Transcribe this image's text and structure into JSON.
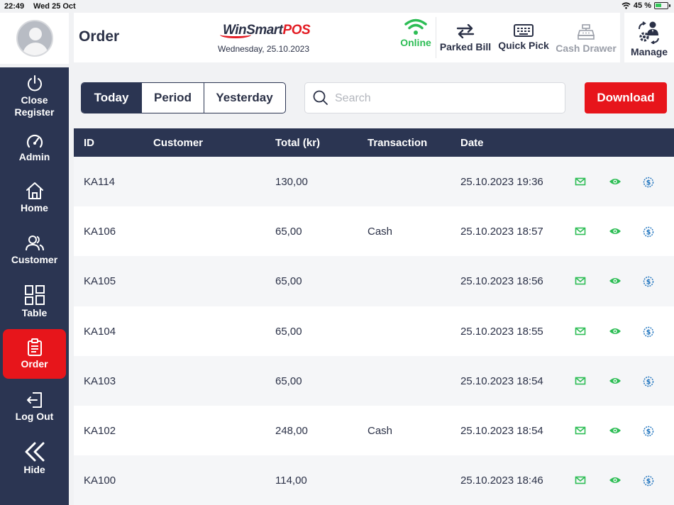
{
  "status_bar": {
    "time": "22:49",
    "date": "Wed 25 Oct",
    "battery": "45 %",
    "battery_level": 0.45
  },
  "header": {
    "title": "Order",
    "logo": {
      "part1": "WinSmart",
      "part2": "POS"
    },
    "date": "Wednesday, 25.10.2023",
    "online_label": "Online",
    "buttons": {
      "parked_bill": "Parked Bill",
      "quick_pick": "Quick Pick",
      "cash_drawer": "Cash Drawer"
    },
    "manage": "Manage"
  },
  "sidebar": {
    "items": [
      {
        "label": "Close Register",
        "icon": "power-icon"
      },
      {
        "label": "Admin",
        "icon": "gauge-icon"
      },
      {
        "label": "Home",
        "icon": "home-icon"
      },
      {
        "label": "Customer",
        "icon": "users-icon"
      },
      {
        "label": "Table",
        "icon": "grid-icon"
      },
      {
        "label": "Order",
        "icon": "clipboard-icon",
        "active": true
      },
      {
        "label": "Log Out",
        "icon": "logout-icon"
      },
      {
        "label": "Hide",
        "icon": "double-chevron-left-icon"
      }
    ]
  },
  "filters": {
    "tabs": [
      "Today",
      "Period",
      "Yesterday"
    ],
    "active": "Today"
  },
  "search": {
    "placeholder": "Search",
    "value": ""
  },
  "download_label": "Download",
  "table": {
    "columns": {
      "id": "ID",
      "customer": "Customer",
      "total": "Total (kr)",
      "transaction": "Transaction",
      "date": "Date"
    },
    "rows": [
      {
        "id": "KA114",
        "customer": "",
        "total": "130,00",
        "transaction": "",
        "date": "25.10.2023 19:36"
      },
      {
        "id": "KA106",
        "customer": "",
        "total": "65,00",
        "transaction": "Cash",
        "date": "25.10.2023 18:57"
      },
      {
        "id": "KA105",
        "customer": "",
        "total": "65,00",
        "transaction": "",
        "date": "25.10.2023 18:56"
      },
      {
        "id": "KA104",
        "customer": "",
        "total": "65,00",
        "transaction": "",
        "date": "25.10.2023 18:55"
      },
      {
        "id": "KA103",
        "customer": "",
        "total": "65,00",
        "transaction": "",
        "date": "25.10.2023 18:54"
      },
      {
        "id": "KA102",
        "customer": "",
        "total": "248,00",
        "transaction": "Cash",
        "date": "25.10.2023 18:54"
      },
      {
        "id": "KA100",
        "customer": "",
        "total": "114,00",
        "transaction": "",
        "date": "25.10.2023 18:46"
      }
    ]
  },
  "colors": {
    "navy": "#2b3552",
    "red": "#e7151b",
    "green": "#2dbd55",
    "blue": "#1e73be"
  }
}
